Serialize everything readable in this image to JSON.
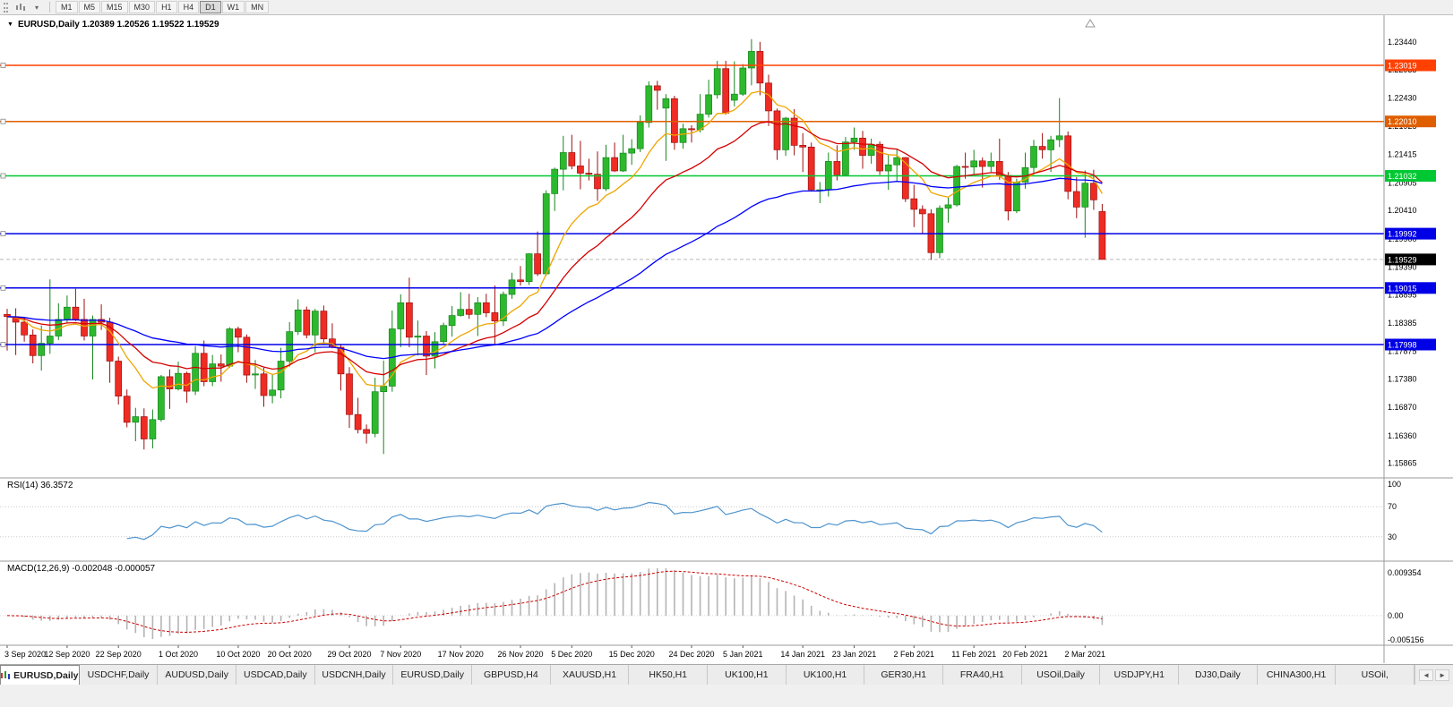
{
  "toolbar": {
    "timeframes": [
      "M1",
      "M5",
      "M15",
      "M30",
      "H1",
      "H4",
      "D1",
      "W1",
      "MN"
    ],
    "active_timeframe": "D1"
  },
  "chart": {
    "marker": "▼",
    "title_line": "EURUSD,Daily 1.20389 1.20526 1.19522 1.19529",
    "ohlc_readout": {
      "open": "1.20389",
      "high": "1.20526",
      "low": "1.19522",
      "close": "1.19529"
    }
  },
  "indicators": {
    "rsi": {
      "label": "RSI(14) 36.3572",
      "value": "36.3572",
      "axis_labels": [
        "100",
        "70",
        "30"
      ],
      "axis_values": [
        100,
        70,
        30
      ]
    },
    "macd": {
      "label": "MACD(12,26,9) -0.002048 -0.000057",
      "main": "-0.002048",
      "signal": "-0.000057",
      "axis_labels": [
        "0.009354",
        "0.00",
        "-0.005156"
      ]
    }
  },
  "chart_data": {
    "type": "candlestick",
    "symbol": "EURUSD",
    "period": "Daily",
    "ylim": [
      1.156,
      1.2392
    ],
    "y_ticks": [
      "1.23440",
      "1.22935",
      "1.22430",
      "1.21925",
      "1.21415",
      "1.20905",
      "1.20410",
      "1.19900",
      "1.19390",
      "1.18895",
      "1.18385",
      "1.17875",
      "1.17380",
      "1.16870",
      "1.16360",
      "1.15865"
    ],
    "x_labels": [
      {
        "i": 0,
        "t": "3 Sep 2020"
      },
      {
        "i": 7,
        "t": "12 Sep 2020"
      },
      {
        "i": 13,
        "t": "22 Sep 2020"
      },
      {
        "i": 20,
        "t": "1 Oct 2020"
      },
      {
        "i": 27,
        "t": "10 Oct 2020"
      },
      {
        "i": 33,
        "t": "20 Oct 2020"
      },
      {
        "i": 40,
        "t": "29 Oct 2020"
      },
      {
        "i": 46,
        "t": "7 Nov 2020"
      },
      {
        "i": 53,
        "t": "17 Nov 2020"
      },
      {
        "i": 60,
        "t": "26 Nov 2020"
      },
      {
        "i": 66,
        "t": "5 Dec 2020"
      },
      {
        "i": 73,
        "t": "15 Dec 2020"
      },
      {
        "i": 80,
        "t": "24 Dec 2020"
      },
      {
        "i": 86,
        "t": "5 Jan 2021"
      },
      {
        "i": 93,
        "t": "14 Jan 2021"
      },
      {
        "i": 99,
        "t": "23 Jan 2021"
      },
      {
        "i": 106,
        "t": "2 Feb 2021"
      },
      {
        "i": 113,
        "t": "11 Feb 2021"
      },
      {
        "i": 119,
        "t": "20 Feb 2021"
      },
      {
        "i": 126,
        "t": "2 Mar 2021"
      }
    ],
    "hlines": [
      {
        "value": 1.23019,
        "label": "1.23019",
        "color": "#ff4000"
      },
      {
        "value": 1.2201,
        "label": "1.22010",
        "color": "#df5e00"
      },
      {
        "value": 1.21032,
        "label": "1.21032",
        "color": "#00c832"
      },
      {
        "value": 1.19992,
        "label": "1.19992",
        "color": "#0000e6"
      },
      {
        "value": 1.19015,
        "label": "1.19015",
        "color": "#0000e6"
      },
      {
        "value": 1.17998,
        "label": "1.17998",
        "color": "#0000e6"
      }
    ],
    "last_price": {
      "value": 1.19529,
      "label": "1.19529",
      "color": "#000000"
    },
    "moving_averages": [
      {
        "period": 10,
        "color": "#efa500"
      },
      {
        "period": 21,
        "color": "#d40000"
      },
      {
        "period": 55,
        "color": "#0000ff"
      }
    ],
    "candle_colors": {
      "up": "#2eb82e",
      "up_border": "#15861c",
      "down": "#ee2c24",
      "down_border": "#9e0f0f"
    },
    "rsi": {
      "period": 14,
      "color": "#4f94cd",
      "levels": [
        70,
        30
      ],
      "range": [
        0,
        100
      ],
      "current": 36.3572
    },
    "macd": {
      "fast": 12,
      "slow": 26,
      "signal_period": 9,
      "histogram_color": "#b4b4b4",
      "signal_color": "#cc0000",
      "range": [
        -0.005156,
        0.009354
      ],
      "main": -0.002048,
      "signal": -5.7e-05
    },
    "ohlc": [
      [
        1.1854,
        1.1864,
        1.1789,
        1.185
      ],
      [
        1.185,
        1.1865,
        1.1781,
        1.184
      ],
      [
        1.184,
        1.1848,
        1.1805,
        1.1817
      ],
      [
        1.1817,
        1.1827,
        1.1766,
        1.178
      ],
      [
        1.178,
        1.1834,
        1.1753,
        1.1802
      ],
      [
        1.1802,
        1.1917,
        1.1783,
        1.1815
      ],
      [
        1.1815,
        1.1874,
        1.1808,
        1.1845
      ],
      [
        1.1845,
        1.1888,
        1.1839,
        1.1867
      ],
      [
        1.1867,
        1.19,
        1.1842,
        1.1845
      ],
      [
        1.1845,
        1.1882,
        1.1807,
        1.1815
      ],
      [
        1.1815,
        1.1852,
        1.1737,
        1.1845
      ],
      [
        1.1845,
        1.1872,
        1.1826,
        1.184
      ],
      [
        1.184,
        1.1848,
        1.1731,
        1.177
      ],
      [
        1.177,
        1.1778,
        1.1692,
        1.1707
      ],
      [
        1.1707,
        1.1719,
        1.1651,
        1.166
      ],
      [
        1.166,
        1.1686,
        1.1626,
        1.167
      ],
      [
        1.167,
        1.1685,
        1.1611,
        1.163
      ],
      [
        1.163,
        1.1683,
        1.1613,
        1.1665
      ],
      [
        1.1665,
        1.1745,
        1.1661,
        1.1742
      ],
      [
        1.1742,
        1.1755,
        1.1684,
        1.172
      ],
      [
        1.172,
        1.1769,
        1.1717,
        1.1748
      ],
      [
        1.1748,
        1.1751,
        1.1695,
        1.1716
      ],
      [
        1.1716,
        1.1797,
        1.1709,
        1.1784
      ],
      [
        1.1784,
        1.1807,
        1.1725,
        1.1733
      ],
      [
        1.1733,
        1.1781,
        1.1725,
        1.1765
      ],
      [
        1.1765,
        1.1782,
        1.1733,
        1.1761
      ],
      [
        1.1761,
        1.1831,
        1.1758,
        1.1828
      ],
      [
        1.1828,
        1.1832,
        1.1786,
        1.1813
      ],
      [
        1.1813,
        1.1818,
        1.1731,
        1.1745
      ],
      [
        1.1745,
        1.1772,
        1.172,
        1.1747
      ],
      [
        1.1747,
        1.1758,
        1.1688,
        1.1708
      ],
      [
        1.1708,
        1.1747,
        1.1694,
        1.1718
      ],
      [
        1.1718,
        1.1794,
        1.1703,
        1.177
      ],
      [
        1.177,
        1.184,
        1.176,
        1.1823
      ],
      [
        1.1823,
        1.1881,
        1.1817,
        1.1862
      ],
      [
        1.1862,
        1.1868,
        1.1811,
        1.1817
      ],
      [
        1.1817,
        1.1864,
        1.1786,
        1.186
      ],
      [
        1.186,
        1.187,
        1.18,
        1.181
      ],
      [
        1.181,
        1.1838,
        1.1793,
        1.1795
      ],
      [
        1.1795,
        1.18,
        1.1717,
        1.1747
      ],
      [
        1.1747,
        1.1759,
        1.165,
        1.1674
      ],
      [
        1.1674,
        1.1704,
        1.164,
        1.1647
      ],
      [
        1.1647,
        1.1656,
        1.1622,
        1.164
      ],
      [
        1.164,
        1.174,
        1.1633,
        1.1715
      ],
      [
        1.1715,
        1.1771,
        1.1603,
        1.1725
      ],
      [
        1.1725,
        1.1861,
        1.1715,
        1.1828
      ],
      [
        1.1828,
        1.189,
        1.1795,
        1.1875
      ],
      [
        1.1875,
        1.192,
        1.1795,
        1.1813
      ],
      [
        1.1813,
        1.1843,
        1.178,
        1.1815
      ],
      [
        1.1815,
        1.1824,
        1.1745,
        1.1779
      ],
      [
        1.1779,
        1.1822,
        1.1757,
        1.1805
      ],
      [
        1.1805,
        1.1839,
        1.1799,
        1.1834
      ],
      [
        1.1834,
        1.1869,
        1.1814,
        1.1852
      ],
      [
        1.1852,
        1.1894,
        1.185,
        1.1863
      ],
      [
        1.1863,
        1.1891,
        1.1846,
        1.1854
      ],
      [
        1.1854,
        1.1885,
        1.1815,
        1.1875
      ],
      [
        1.1875,
        1.1891,
        1.1849,
        1.1857
      ],
      [
        1.1857,
        1.1906,
        1.18,
        1.1842
      ],
      [
        1.1842,
        1.1895,
        1.1833,
        1.189
      ],
      [
        1.189,
        1.1929,
        1.1882,
        1.1916
      ],
      [
        1.1916,
        1.1941,
        1.1906,
        1.1913
      ],
      [
        1.1913,
        1.1964,
        1.1907,
        1.1963
      ],
      [
        1.1963,
        1.2003,
        1.1923,
        1.1927
      ],
      [
        1.1927,
        1.2077,
        1.1923,
        1.2071
      ],
      [
        1.2071,
        1.2118,
        1.204,
        1.2115
      ],
      [
        1.2115,
        1.2175,
        1.2077,
        1.2145
      ],
      [
        1.2145,
        1.2177,
        1.2115,
        1.2121
      ],
      [
        1.2121,
        1.2166,
        1.2079,
        1.2108
      ],
      [
        1.2108,
        1.2134,
        1.2095,
        1.2106
      ],
      [
        1.2106,
        1.2147,
        1.2058,
        1.208
      ],
      [
        1.208,
        1.2159,
        1.2076,
        1.2136
      ],
      [
        1.2136,
        1.2163,
        1.211,
        1.2112
      ],
      [
        1.2112,
        1.2177,
        1.211,
        1.2144
      ],
      [
        1.2144,
        1.2169,
        1.2123,
        1.2152
      ],
      [
        1.2152,
        1.2212,
        1.2146,
        1.2199
      ],
      [
        1.2199,
        1.2273,
        1.219,
        1.2265
      ],
      [
        1.2265,
        1.2274,
        1.2222,
        1.2257
      ],
      [
        1.2225,
        1.225,
        1.213,
        1.2242
      ],
      [
        1.2242,
        1.2247,
        1.215,
        1.2163
      ],
      [
        1.2163,
        1.2197,
        1.2152,
        1.2188
      ],
      [
        1.2188,
        1.2194,
        1.2163,
        1.2186
      ],
      [
        1.2186,
        1.225,
        1.2181,
        1.2214
      ],
      [
        1.2214,
        1.2276,
        1.2208,
        1.2249
      ],
      [
        1.2249,
        1.231,
        1.2242,
        1.2296
      ],
      [
        1.2296,
        1.231,
        1.2213,
        1.2216
      ],
      [
        1.2239,
        1.2309,
        1.2228,
        1.225
      ],
      [
        1.225,
        1.2304,
        1.2247,
        1.2297
      ],
      [
        1.2297,
        1.2349,
        1.2266,
        1.2327
      ],
      [
        1.2327,
        1.2344,
        1.2248,
        1.227
      ],
      [
        1.227,
        1.2285,
        1.2193,
        1.222
      ],
      [
        1.222,
        1.2224,
        1.2132,
        1.215
      ],
      [
        1.215,
        1.2209,
        1.2139,
        1.2207
      ],
      [
        1.2207,
        1.2223,
        1.214,
        1.2158
      ],
      [
        1.2158,
        1.218,
        1.211,
        1.2155
      ],
      [
        1.2155,
        1.2163,
        1.2075,
        1.2078
      ],
      [
        1.2078,
        1.2092,
        1.2054,
        1.2078
      ],
      [
        1.2078,
        1.2145,
        1.2066,
        1.2129
      ],
      [
        1.2129,
        1.2158,
        1.2095,
        1.2105
      ],
      [
        1.2105,
        1.2173,
        1.2102,
        1.2164
      ],
      [
        1.2164,
        1.219,
        1.215,
        1.2171
      ],
      [
        1.2171,
        1.2184,
        1.2116,
        1.214
      ],
      [
        1.214,
        1.217,
        1.2125,
        1.216
      ],
      [
        1.216,
        1.2165,
        1.2105,
        1.2112
      ],
      [
        1.2112,
        1.214,
        1.2078,
        1.2123
      ],
      [
        1.2123,
        1.2152,
        1.2092,
        1.2136
      ],
      [
        1.2136,
        1.2137,
        1.2056,
        1.2062
      ],
      [
        1.2062,
        1.2087,
        1.2011,
        1.2043
      ],
      [
        1.2043,
        1.205,
        1.1999,
        1.2035
      ],
      [
        1.2035,
        1.2043,
        1.1952,
        1.1965
      ],
      [
        1.1965,
        1.205,
        1.1955,
        1.2045
      ],
      [
        1.2045,
        1.2064,
        1.2019,
        1.2051
      ],
      [
        1.2051,
        1.2123,
        1.2048,
        1.212
      ],
      [
        1.212,
        1.2145,
        1.2098,
        1.2119
      ],
      [
        1.2119,
        1.215,
        1.2106,
        1.213
      ],
      [
        1.213,
        1.2136,
        1.2082,
        1.212
      ],
      [
        1.212,
        1.2145,
        1.211,
        1.2129
      ],
      [
        1.2129,
        1.217,
        1.2096,
        1.2104
      ],
      [
        1.2104,
        1.211,
        1.2023,
        1.204
      ],
      [
        1.204,
        1.2098,
        1.2036,
        1.2092
      ],
      [
        1.2092,
        1.2145,
        1.208,
        1.2118
      ],
      [
        1.2118,
        1.2168,
        1.2105,
        1.2156
      ],
      [
        1.2156,
        1.218,
        1.2134,
        1.215
      ],
      [
        1.215,
        1.2175,
        1.211,
        1.2168
      ],
      [
        1.2168,
        1.2243,
        1.2155,
        1.2175
      ],
      [
        1.2175,
        1.2183,
        1.2061,
        1.2075
      ],
      [
        1.2075,
        1.2101,
        1.2027,
        1.2047
      ],
      [
        1.2047,
        1.2113,
        1.1992,
        1.209
      ],
      [
        1.209,
        1.2114,
        1.2042,
        1.206
      ],
      [
        1.20389,
        1.20526,
        1.19522,
        1.19529
      ]
    ]
  },
  "tabbar": {
    "scroll_left": "◄",
    "scroll_right": "►",
    "tabs": [
      {
        "label": "EURUSD,Daily",
        "active": true
      },
      {
        "label": "USDCHF,Daily"
      },
      {
        "label": "AUDUSD,Daily"
      },
      {
        "label": "USDCAD,Daily"
      },
      {
        "label": "USDCNH,Daily"
      },
      {
        "label": "EURUSD,Daily"
      },
      {
        "label": "GBPUSD,H4"
      },
      {
        "label": "XAUUSD,H1"
      },
      {
        "label": "HK50,H1"
      },
      {
        "label": "UK100,H1"
      },
      {
        "label": "UK100,H1"
      },
      {
        "label": "GER30,H1"
      },
      {
        "label": "FRA40,H1"
      },
      {
        "label": "USOil,Daily"
      },
      {
        "label": "USDJPY,H1"
      },
      {
        "label": "DJ30,Daily"
      },
      {
        "label": "CHINA300,H1"
      },
      {
        "label": "USOil,"
      }
    ]
  }
}
